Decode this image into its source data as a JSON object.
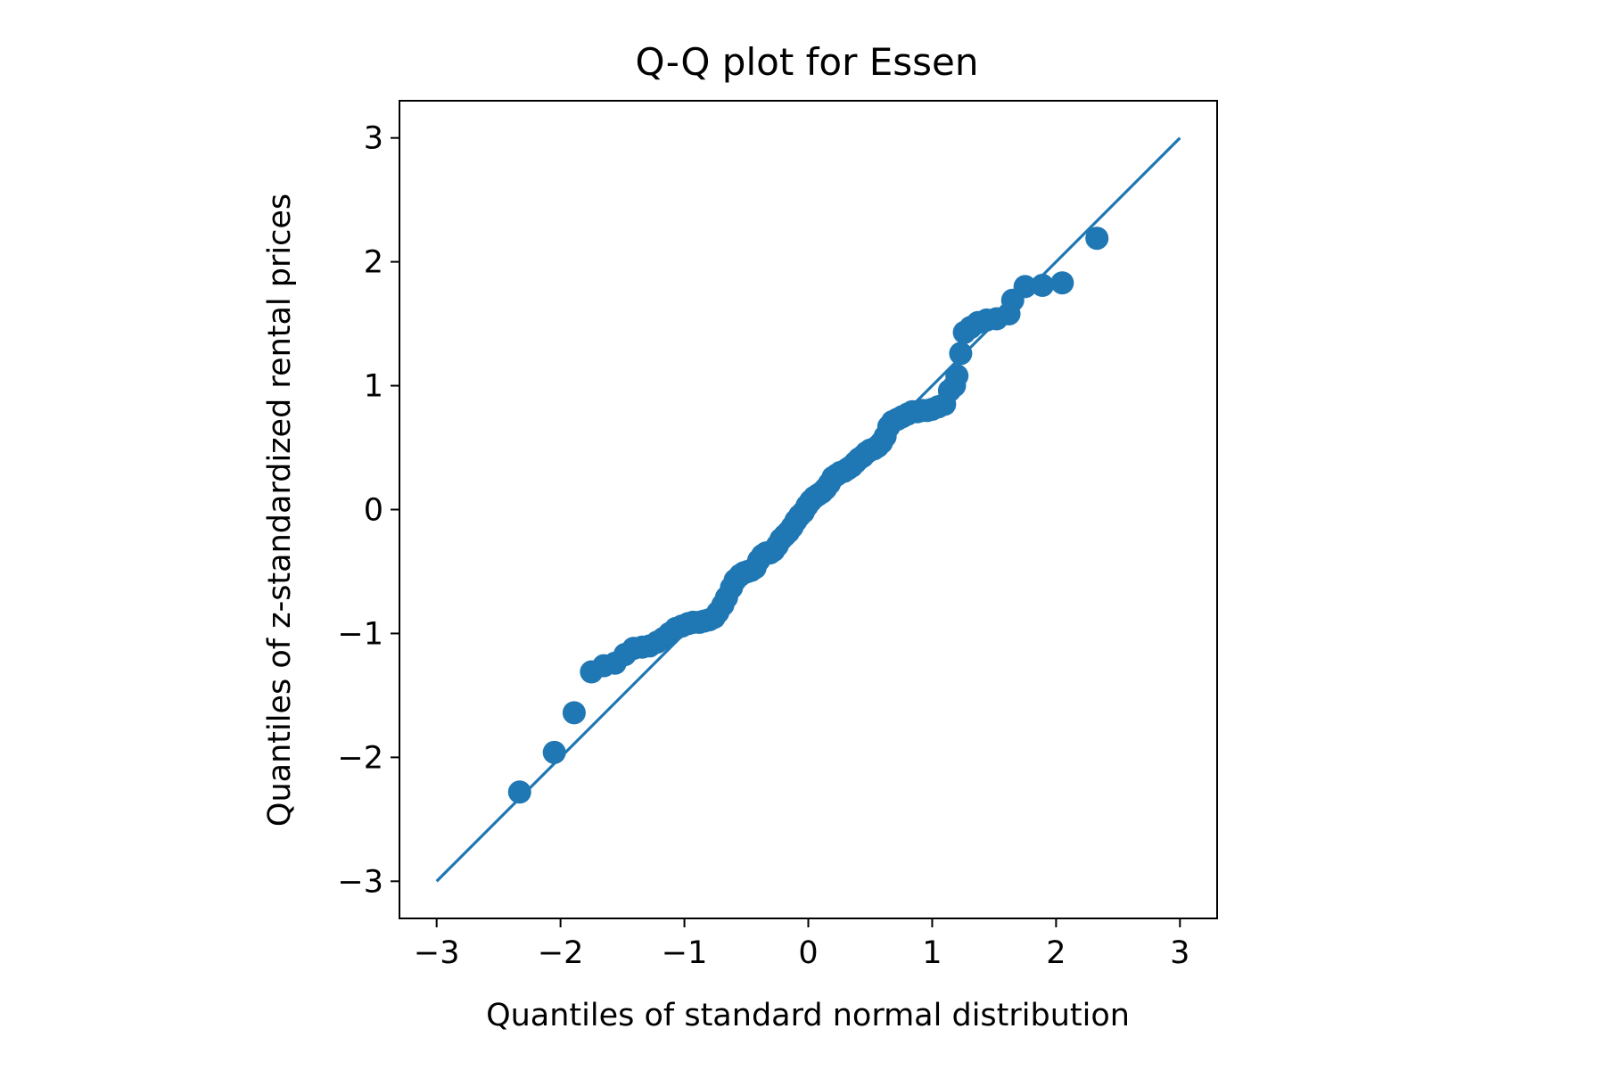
{
  "chart_data": {
    "type": "scatter",
    "title": "Q-Q plot for Essen",
    "xlabel": "Quantiles of standard normal distribution",
    "ylabel": "Quantiles of z-standardized rental prices",
    "xlim": [
      -3.3,
      3.3
    ],
    "ylim": [
      -3.3,
      3.3
    ],
    "x_ticks": [
      -3,
      -2,
      -1,
      0,
      1,
      2,
      3
    ],
    "y_ticks": [
      -3,
      -2,
      -1,
      0,
      1,
      2,
      3
    ],
    "x_tick_labels": [
      "−3",
      "−2",
      "−1",
      "0",
      "1",
      "2",
      "3"
    ],
    "y_tick_labels": [
      "−3",
      "−2",
      "−1",
      "0",
      "1",
      "2",
      "3"
    ],
    "grid": false,
    "reference_line": {
      "x": [
        -3,
        3
      ],
      "y": [
        -3,
        3
      ]
    },
    "series": [
      {
        "color": "#1f77b4",
        "points": [
          [
            -2.33,
            -2.28
          ],
          [
            -2.05,
            -1.96
          ],
          [
            -1.89,
            -1.64
          ],
          [
            -1.75,
            -1.31
          ],
          [
            -1.65,
            -1.26
          ],
          [
            -1.56,
            -1.24
          ],
          [
            -1.48,
            -1.17
          ],
          [
            -1.41,
            -1.12
          ],
          [
            -1.34,
            -1.11
          ],
          [
            -1.28,
            -1.1
          ],
          [
            -1.22,
            -1.07
          ],
          [
            -1.17,
            -1.04
          ],
          [
            -1.12,
            -1.0
          ],
          [
            -1.07,
            -0.96
          ],
          [
            -1.02,
            -0.94
          ],
          [
            -0.97,
            -0.92
          ],
          [
            -0.93,
            -0.91
          ],
          [
            -0.88,
            -0.91
          ],
          [
            -0.84,
            -0.9
          ],
          [
            -0.8,
            -0.89
          ],
          [
            -0.76,
            -0.87
          ],
          [
            -0.73,
            -0.83
          ],
          [
            -0.69,
            -0.77
          ],
          [
            -0.66,
            -0.71
          ],
          [
            -0.62,
            -0.63
          ],
          [
            -0.59,
            -0.57
          ],
          [
            -0.55,
            -0.53
          ],
          [
            -0.52,
            -0.51
          ],
          [
            -0.49,
            -0.5
          ],
          [
            -0.46,
            -0.49
          ],
          [
            -0.43,
            -0.47
          ],
          [
            -0.4,
            -0.41
          ],
          [
            -0.37,
            -0.37
          ],
          [
            -0.34,
            -0.35
          ],
          [
            -0.31,
            -0.35
          ],
          [
            -0.28,
            -0.33
          ],
          [
            -0.25,
            -0.29
          ],
          [
            -0.22,
            -0.24
          ],
          [
            -0.19,
            -0.21
          ],
          [
            -0.16,
            -0.18
          ],
          [
            -0.13,
            -0.14
          ],
          [
            -0.1,
            -0.09
          ],
          [
            -0.07,
            -0.05
          ],
          [
            -0.04,
            -0.02
          ],
          [
            -0.01,
            0.03
          ],
          [
            0.02,
            0.07
          ],
          [
            0.05,
            0.1
          ],
          [
            0.08,
            0.12
          ],
          [
            0.11,
            0.14
          ],
          [
            0.14,
            0.17
          ],
          [
            0.17,
            0.21
          ],
          [
            0.2,
            0.26
          ],
          [
            0.23,
            0.28
          ],
          [
            0.26,
            0.3
          ],
          [
            0.29,
            0.31
          ],
          [
            0.32,
            0.33
          ],
          [
            0.35,
            0.35
          ],
          [
            0.38,
            0.38
          ],
          [
            0.41,
            0.41
          ],
          [
            0.44,
            0.43
          ],
          [
            0.47,
            0.46
          ],
          [
            0.5,
            0.48
          ],
          [
            0.53,
            0.49
          ],
          [
            0.56,
            0.51
          ],
          [
            0.59,
            0.54
          ],
          [
            0.62,
            0.59
          ],
          [
            0.65,
            0.67
          ],
          [
            0.68,
            0.71
          ],
          [
            0.72,
            0.73
          ],
          [
            0.76,
            0.75
          ],
          [
            0.8,
            0.77
          ],
          [
            0.84,
            0.79
          ],
          [
            0.88,
            0.79
          ],
          [
            0.92,
            0.8
          ],
          [
            0.96,
            0.8
          ],
          [
            1.0,
            0.81
          ],
          [
            1.05,
            0.83
          ],
          [
            1.1,
            0.85
          ],
          [
            1.14,
            0.96
          ],
          [
            1.18,
            1.0
          ],
          [
            1.2,
            1.08
          ],
          [
            1.23,
            1.26
          ],
          [
            1.26,
            1.43
          ],
          [
            1.31,
            1.47
          ],
          [
            1.37,
            1.51
          ],
          [
            1.44,
            1.53
          ],
          [
            1.52,
            1.54
          ],
          [
            1.62,
            1.58
          ],
          [
            1.65,
            1.69
          ],
          [
            1.75,
            1.8
          ],
          [
            1.89,
            1.81
          ],
          [
            2.05,
            1.83
          ],
          [
            2.33,
            2.19
          ]
        ]
      }
    ]
  }
}
